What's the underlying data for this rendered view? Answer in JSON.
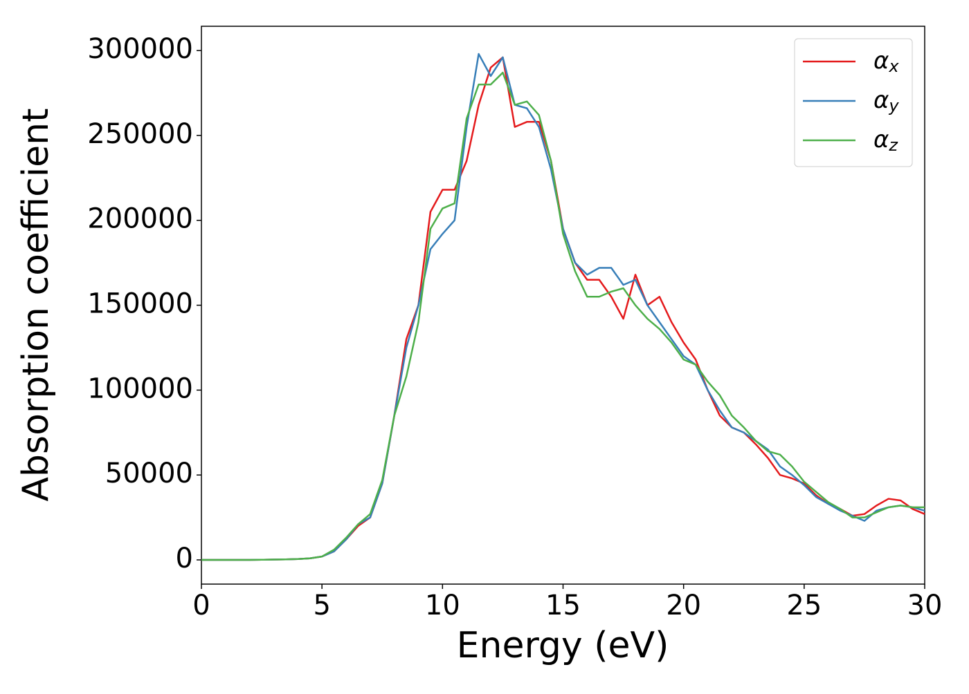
{
  "chart_data": {
    "type": "line",
    "x_label": "Energy (eV)",
    "y_label": "Absorption coefficient",
    "x": [
      0,
      0.5,
      1,
      1.5,
      2,
      2.5,
      3,
      3.5,
      4,
      4.5,
      5,
      5.5,
      6,
      6.5,
      7,
      7.5,
      8,
      8.5,
      9,
      9.5,
      10,
      10.5,
      11,
      11.5,
      12,
      12.5,
      13,
      13.5,
      14,
      14.5,
      15,
      15.5,
      16,
      16.5,
      17,
      17.5,
      18,
      18.5,
      19,
      19.5,
      20,
      20.5,
      21,
      21.5,
      22,
      22.5,
      23,
      23.5,
      24,
      24.5,
      25,
      25.5,
      26,
      26.5,
      27,
      27.5,
      28,
      28.5,
      29,
      29.5,
      30
    ],
    "series": [
      {
        "name": "αx",
        "color": "#e41a1c",
        "values": [
          0,
          0,
          0,
          0,
          0,
          100,
          200,
          300,
          500,
          900,
          2000,
          5000,
          12000,
          20000,
          25000,
          45000,
          85000,
          130000,
          150000,
          205000,
          218000,
          218000,
          235000,
          268000,
          290000,
          296000,
          255000,
          258000,
          258000,
          235000,
          195000,
          175000,
          165000,
          165000,
          155000,
          142000,
          168000,
          150000,
          155000,
          140000,
          128000,
          118000,
          100000,
          85000,
          78000,
          75000,
          68000,
          60000,
          50000,
          48000,
          45000,
          38000,
          33000,
          30000,
          26000,
          27000,
          32000,
          36000,
          35000,
          30000,
          27000
        ]
      },
      {
        "name": "αy",
        "color": "#377eb8",
        "values": [
          0,
          0,
          0,
          0,
          0,
          100,
          200,
          300,
          500,
          900,
          2000,
          5000,
          12000,
          21000,
          25000,
          45000,
          85000,
          125000,
          150000,
          183000,
          192000,
          200000,
          255000,
          298000,
          285000,
          296000,
          268000,
          266000,
          255000,
          230000,
          195000,
          175000,
          168000,
          172000,
          172000,
          162000,
          165000,
          150000,
          140000,
          130000,
          120000,
          115000,
          100000,
          88000,
          78000,
          75000,
          70000,
          65000,
          55000,
          50000,
          44000,
          37000,
          33000,
          29000,
          26000,
          23000,
          29000,
          31000,
          32000,
          31000,
          29000
        ]
      },
      {
        "name": "αz",
        "color": "#4daf4a",
        "values": [
          0,
          0,
          0,
          0,
          0,
          100,
          200,
          300,
          500,
          900,
          2000,
          6000,
          13000,
          21000,
          27000,
          47000,
          85000,
          108000,
          140000,
          195000,
          207000,
          210000,
          260000,
          280000,
          280000,
          287000,
          268000,
          270000,
          262000,
          235000,
          192000,
          170000,
          155000,
          155000,
          158000,
          160000,
          150000,
          142000,
          136000,
          128000,
          118000,
          115000,
          105000,
          97000,
          85000,
          78000,
          70000,
          64000,
          62000,
          55000,
          46000,
          40000,
          34000,
          30000,
          25000,
          25000,
          28000,
          31000,
          32000,
          31000,
          31000
        ]
      }
    ],
    "xlim": [
      0,
      30
    ],
    "xticks": [
      0,
      5,
      10,
      15,
      20,
      25,
      30
    ],
    "ylim": [
      -14250,
      314300
    ],
    "yticks": [
      0,
      50000,
      100000,
      150000,
      200000,
      250000,
      300000
    ],
    "legend": "upper right",
    "grid": false
  }
}
